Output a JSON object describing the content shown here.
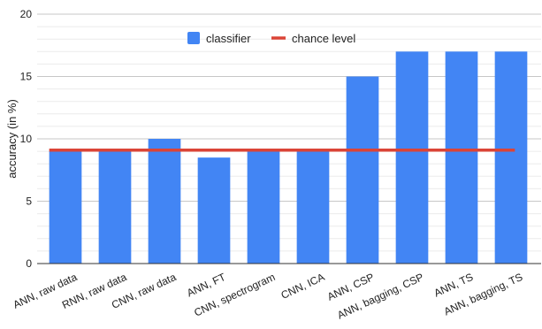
{
  "chart_data": {
    "type": "bar",
    "title": "",
    "xlabel": "",
    "ylabel": "accuracy (in %)",
    "ylim": [
      0,
      20
    ],
    "yticks": [
      0,
      5,
      10,
      15,
      20
    ],
    "grid": true,
    "legend_position": "top-center",
    "categories": [
      "ANN, raw data",
      "RNN, raw data",
      "CNN, raw data",
      "ANN, FT",
      "CNN, spectrogram",
      "CNN, ICA",
      "ANN, CSP",
      "ANN, bagging, CSP",
      "ANN, TS",
      "ANN, bagging, TS"
    ],
    "series": [
      {
        "name": "classifier",
        "color": "#4285f4",
        "values": [
          9,
          9,
          10,
          8.5,
          9,
          9,
          15,
          17,
          17,
          17
        ]
      }
    ],
    "reference_lines": [
      {
        "name": "chance level",
        "color": "#db4437",
        "value": 9.1
      }
    ]
  }
}
